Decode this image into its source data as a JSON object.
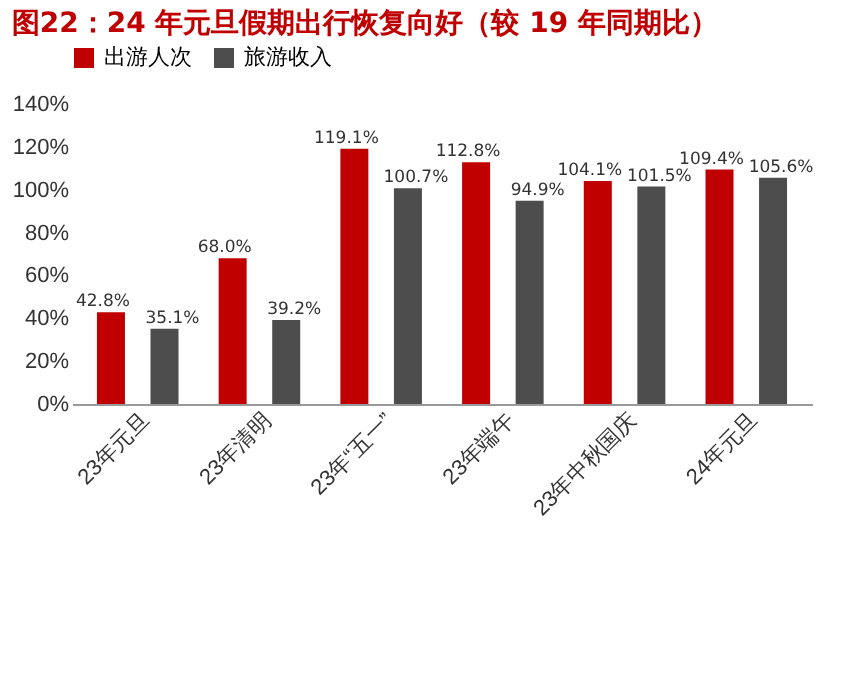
{
  "chart_data": {
    "type": "bar",
    "title": "图22：24 年元旦假期出行恢复向好（较 19 年同期比）",
    "categories": [
      "23年元旦",
      "23年清明",
      "23年“五一”",
      "23年端午",
      "23年中秋国庆",
      "24年元旦"
    ],
    "series": [
      {
        "name": "出游人次",
        "color": "#c00000",
        "values": [
          42.8,
          68.0,
          119.1,
          112.8,
          104.1,
          109.4
        ],
        "value_labels": [
          "42.8%",
          "68.0%",
          "119.1%",
          "112.8%",
          "104.1%",
          "109.4%"
        ]
      },
      {
        "name": "旅游收入",
        "color": "#4d4d4d",
        "values": [
          35.1,
          39.2,
          100.7,
          94.9,
          101.5,
          105.6
        ],
        "value_labels": [
          "35.1%",
          "39.2%",
          "100.7%",
          "94.9%",
          "101.5%",
          "105.6%"
        ]
      }
    ],
    "ylim": [
      0,
      140
    ],
    "yticks": [
      {
        "value": 0,
        "label": "0%"
      },
      {
        "value": 20,
        "label": "20%"
      },
      {
        "value": 40,
        "label": "40%"
      },
      {
        "value": 60,
        "label": "60%"
      },
      {
        "value": 80,
        "label": "80%"
      },
      {
        "value": 100,
        "label": "100%"
      },
      {
        "value": 120,
        "label": "120%"
      },
      {
        "value": 140,
        "label": "140%"
      }
    ],
    "grid": false,
    "legend": "top"
  }
}
